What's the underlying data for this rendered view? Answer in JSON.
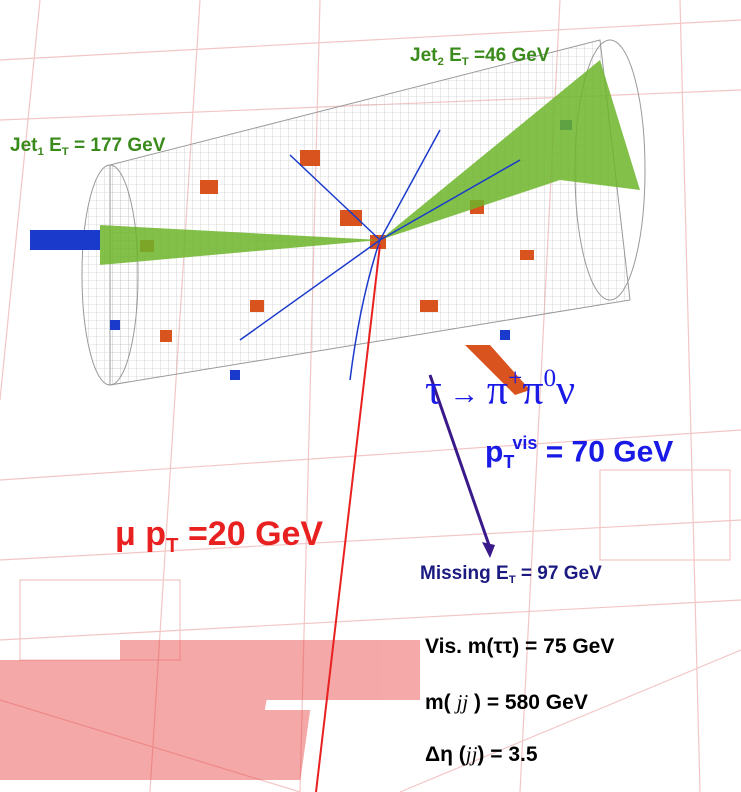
{
  "labels": {
    "jet1": [
      "Jet",
      "1",
      " E",
      "T",
      " = 177 GeV"
    ],
    "jet2": [
      "Jet",
      "2",
      " E",
      "T",
      " =46 GeV"
    ],
    "decay": [
      "τ",
      " → ",
      "π",
      "+",
      "π",
      "0",
      "ν"
    ],
    "pt_vis": [
      "p",
      "T",
      "vis",
      " = 70 GeV"
    ],
    "muon": [
      "μ p",
      "T",
      " =20 GeV"
    ],
    "missing": [
      "Missing E",
      "T",
      " = 97 GeV"
    ],
    "vis_mass": "Vis. m(ττ) = 75 GeV",
    "mjj": [
      "m( ",
      "jj",
      " ) = 580 GeV"
    ],
    "deta": [
      "Δη (",
      "jj",
      ") = 3.5"
    ]
  }
}
